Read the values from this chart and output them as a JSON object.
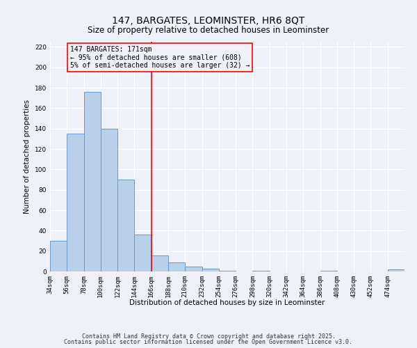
{
  "title": "147, BARGATES, LEOMINSTER, HR6 8QT",
  "subtitle": "Size of property relative to detached houses in Leominster",
  "xlabel": "Distribution of detached houses by size in Leominster",
  "ylabel": "Number of detached properties",
  "bins": [
    34,
    56,
    78,
    100,
    122,
    144,
    166,
    188,
    210,
    232,
    254,
    276,
    298,
    320,
    342,
    364,
    386,
    408,
    430,
    452,
    474
  ],
  "counts": [
    30,
    135,
    176,
    140,
    90,
    36,
    16,
    9,
    5,
    3,
    1,
    0,
    1,
    0,
    0,
    0,
    1,
    0,
    0,
    0,
    2
  ],
  "vline_x": 166,
  "bar_color": "#b8d0ea",
  "bar_edge_color": "#6699cc",
  "vline_color": "red",
  "annotation_line1": "147 BARGATES: 171sqm",
  "annotation_line2": "← 95% of detached houses are smaller (608)",
  "annotation_line3": "5% of semi-detached houses are larger (32) →",
  "annotation_box_edge_color": "red",
  "ylim": [
    0,
    225
  ],
  "yticks": [
    0,
    20,
    40,
    60,
    80,
    100,
    120,
    140,
    160,
    180,
    200,
    220
  ],
  "tick_labels": [
    "34sqm",
    "56sqm",
    "78sqm",
    "100sqm",
    "122sqm",
    "144sqm",
    "166sqm",
    "188sqm",
    "210sqm",
    "232sqm",
    "254sqm",
    "276sqm",
    "298sqm",
    "320sqm",
    "342sqm",
    "364sqm",
    "386sqm",
    "408sqm",
    "430sqm",
    "452sqm",
    "474sqm"
  ],
  "footnote1": "Contains HM Land Registry data © Crown copyright and database right 2025.",
  "footnote2": "Contains public sector information licensed under the Open Government Licence v3.0.",
  "bg_color": "#eef2f8",
  "grid_color": "#ffffff",
  "title_fontsize": 10,
  "subtitle_fontsize": 8.5,
  "axis_label_fontsize": 7.5,
  "tick_fontsize": 6.5,
  "annotation_fontsize": 7,
  "footnote_fontsize": 6
}
